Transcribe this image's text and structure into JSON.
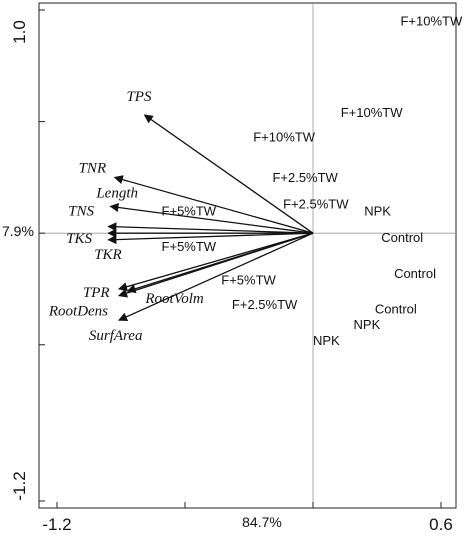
{
  "chart_data": {
    "type": "scatter",
    "axes": {
      "x_tick_labels": [
        "-1.2",
        "0.6"
      ],
      "y_tick_labels": [
        "1.0",
        "-1.2"
      ],
      "x_axis_label": "84.7%",
      "y_axis_label": "7.9%",
      "xlim": [
        -1.2,
        0.6
      ],
      "ylim": [
        -1.2,
        1.0
      ]
    },
    "variables": [
      {
        "name": "TPS",
        "x": -0.79,
        "y": 0.53
      },
      {
        "name": "TNR",
        "x": -0.93,
        "y": 0.25
      },
      {
        "name": "Length",
        "x": -0.95,
        "y": 0.12
      },
      {
        "name": "TNS",
        "x": -0.96,
        "y": 0.03
      },
      {
        "name": "TKS",
        "x": -0.96,
        "y": 0.0
      },
      {
        "name": "TKR",
        "x": -0.96,
        "y": -0.03
      },
      {
        "name": "TPR",
        "x": -0.91,
        "y": -0.25
      },
      {
        "name": "RootDens",
        "x": -0.91,
        "y": -0.28
      },
      {
        "name": "RootVolm",
        "x": -0.87,
        "y": -0.26
      },
      {
        "name": "SurfArea",
        "x": -0.91,
        "y": -0.39
      }
    ],
    "observations": [
      {
        "label": "F+10%TW",
        "x": 0.41,
        "y": 0.93
      },
      {
        "label": "F+10%TW",
        "x": 0.13,
        "y": 0.52
      },
      {
        "label": "F+10%TW",
        "x": -0.28,
        "y": 0.41
      },
      {
        "label": "F+2.5%TW",
        "x": -0.19,
        "y": 0.23
      },
      {
        "label": "F+2.5%TW",
        "x": -0.14,
        "y": 0.11
      },
      {
        "label": "F+2.5%TW",
        "x": -0.38,
        "y": -0.34
      },
      {
        "label": "F+5%TW",
        "x": -0.71,
        "y": 0.08
      },
      {
        "label": "F+5%TW",
        "x": -0.71,
        "y": -0.08
      },
      {
        "label": "F+5%TW",
        "x": -0.43,
        "y": -0.23
      },
      {
        "label": "NPK",
        "x": 0.24,
        "y": 0.08
      },
      {
        "label": "NPK",
        "x": 0.19,
        "y": -0.43
      },
      {
        "label": "NPK",
        "x": 0.0,
        "y": -0.5
      },
      {
        "label": "Control",
        "x": 0.32,
        "y": -0.04
      },
      {
        "label": "Control",
        "x": 0.38,
        "y": -0.2
      },
      {
        "label": "Control",
        "x": 0.29,
        "y": -0.36
      }
    ],
    "grid": false,
    "reference_lines": "x=0 and y=0"
  },
  "colors": {
    "arrow": "#111111",
    "reference_line": "#999999",
    "frame": "#222222"
  }
}
